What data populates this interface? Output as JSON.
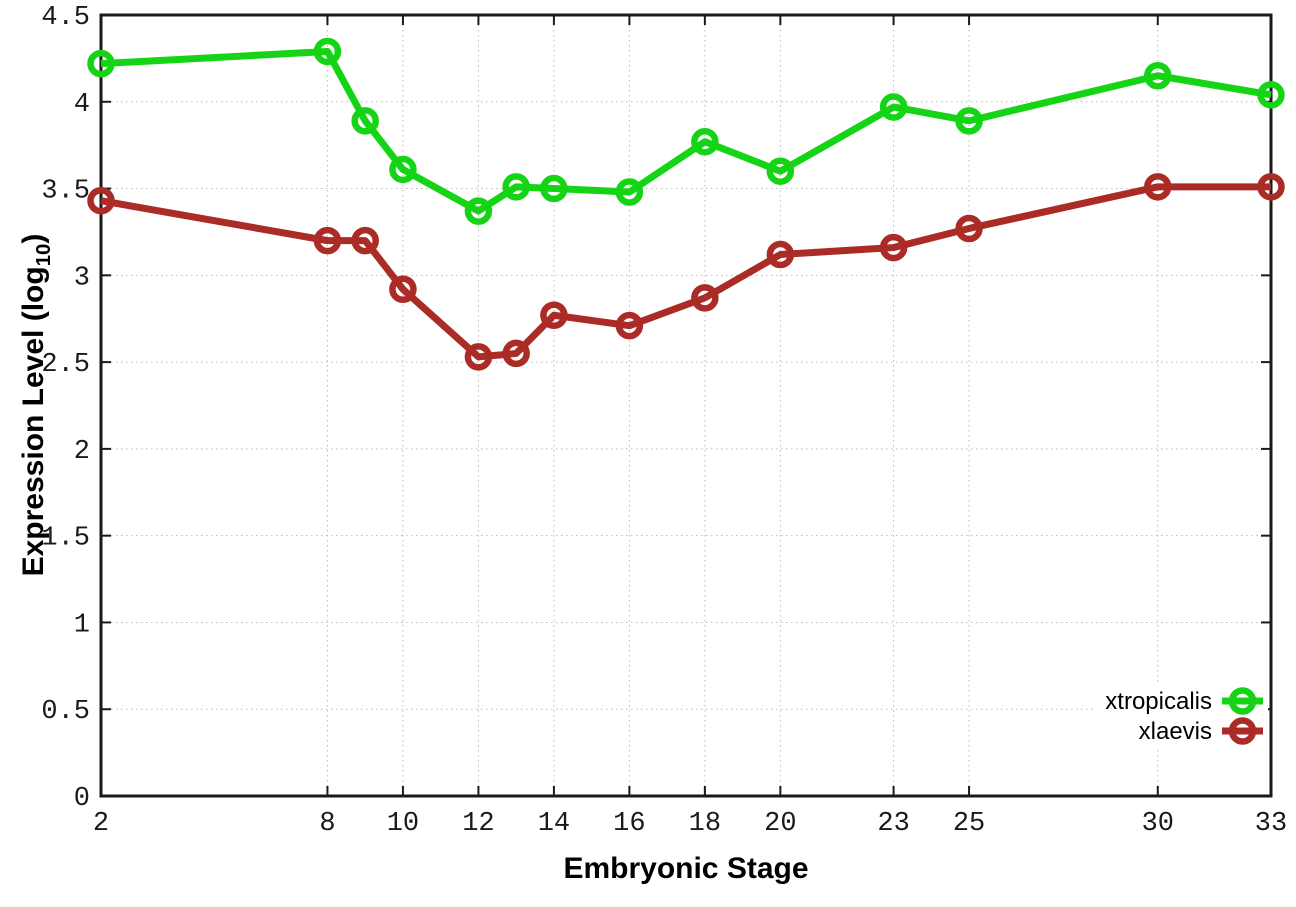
{
  "chart_data": {
    "type": "line",
    "title": "",
    "xlabel": "Embryonic Stage",
    "ylabel": "Expression Level (log10)",
    "ylabel_parts": {
      "main": "Expression Level (log",
      "sub": "10",
      "close": ")"
    },
    "x": [
      2,
      8,
      9,
      10,
      12,
      13,
      14,
      16,
      18,
      20,
      23,
      25,
      30,
      33
    ],
    "xticks": [
      2,
      8,
      10,
      12,
      14,
      16,
      18,
      20,
      23,
      25,
      30,
      33
    ],
    "xtick_labels": [
      "2",
      "8",
      "10",
      "12",
      "14",
      "16",
      "18",
      "20",
      "23",
      "25",
      "30",
      "33"
    ],
    "yticks": [
      0,
      0.5,
      1,
      1.5,
      2,
      2.5,
      3,
      3.5,
      4,
      4.5
    ],
    "ytick_labels": [
      "0",
      "0.5",
      "1",
      "1.5",
      "2",
      "2.5",
      "3",
      "3.5",
      "4",
      "4.5"
    ],
    "xlim": [
      2,
      33
    ],
    "ylim": [
      0,
      4.5
    ],
    "grid": true,
    "legend_position": "bottom-right",
    "series": [
      {
        "name": "xtropicalis",
        "color": "#15d415",
        "values": [
          4.22,
          4.29,
          3.89,
          3.61,
          3.37,
          3.51,
          3.5,
          3.48,
          3.77,
          3.6,
          3.97,
          3.89,
          4.15,
          4.04
        ]
      },
      {
        "name": "xlaevis",
        "color": "#ab2b26",
        "values": [
          3.43,
          3.2,
          3.2,
          2.92,
          2.53,
          2.55,
          2.77,
          2.71,
          2.87,
          3.12,
          3.16,
          3.27,
          3.51,
          3.51
        ]
      }
    ],
    "colors": {
      "border": "#1a1a1a",
      "grid": "#bbbbbb",
      "tick_text": "#1a1a1a"
    }
  }
}
